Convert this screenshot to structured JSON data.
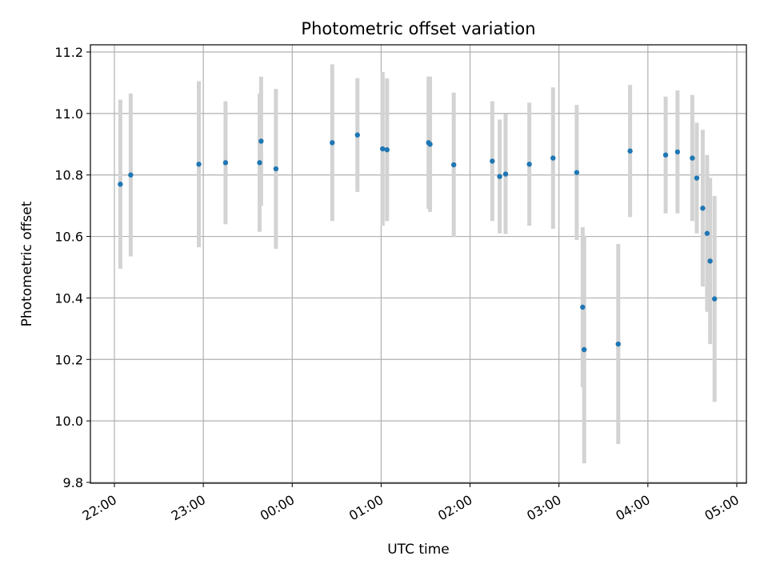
{
  "chart_data": {
    "type": "scatter",
    "title": "Photometric offset variation",
    "xlabel": "UTC time",
    "ylabel": "Photometric offset",
    "x_tick_labels": [
      "22:00",
      "23:00",
      "00:00",
      "01:00",
      "02:00",
      "03:00",
      "04:00",
      "05:00"
    ],
    "y_tick_labels": [
      "9.8",
      "10.0",
      "10.2",
      "10.4",
      "10.6",
      "10.8",
      "11.0",
      "11.2"
    ],
    "y_ticks": [
      9.8,
      10.0,
      10.2,
      10.4,
      10.6,
      10.8,
      11.0,
      11.2
    ],
    "ylim": [
      9.795,
      11.22
    ],
    "grid": true,
    "colors": {
      "point": "#1f77b4",
      "errorbar": "#d3d3d3",
      "grid": "#b0b0b0"
    },
    "points": [
      {
        "t": "22:04",
        "y": 10.77,
        "err": 0.275
      },
      {
        "t": "22:11",
        "y": 10.8,
        "err": 0.265
      },
      {
        "t": "22:57",
        "y": 10.835,
        "err": 0.27
      },
      {
        "t": "23:15",
        "y": 10.84,
        "err": 0.2
      },
      {
        "t": "23:38",
        "y": 10.84,
        "err": 0.225
      },
      {
        "t": "23:39",
        "y": 10.91,
        "err": 0.21
      },
      {
        "t": "23:49",
        "y": 10.82,
        "err": 0.26
      },
      {
        "t": "00:27",
        "y": 10.905,
        "err": 0.255
      },
      {
        "t": "00:44",
        "y": 10.93,
        "err": 0.185
      },
      {
        "t": "01:01",
        "y": 10.885,
        "err": 0.25
      },
      {
        "t": "01:04",
        "y": 10.882,
        "err": 0.232
      },
      {
        "t": "01:32",
        "y": 10.905,
        "err": 0.215
      },
      {
        "t": "01:33",
        "y": 10.9,
        "err": 0.22
      },
      {
        "t": "01:49",
        "y": 10.833,
        "err": 0.235
      },
      {
        "t": "02:15",
        "y": 10.845,
        "err": 0.195
      },
      {
        "t": "02:20",
        "y": 10.795,
        "err": 0.185
      },
      {
        "t": "02:24",
        "y": 10.803,
        "err": 0.195
      },
      {
        "t": "02:40",
        "y": 10.835,
        "err": 0.2
      },
      {
        "t": "02:56",
        "y": 10.855,
        "err": 0.23
      },
      {
        "t": "03:12",
        "y": 10.808,
        "err": 0.22
      },
      {
        "t": "03:16",
        "y": 10.37,
        "err": 0.26
      },
      {
        "t": "03:17",
        "y": 10.232,
        "err": 0.37
      },
      {
        "t": "03:40",
        "y": 10.25,
        "err": 0.325
      },
      {
        "t": "03:48",
        "y": 10.878,
        "err": 0.215
      },
      {
        "t": "04:12",
        "y": 10.865,
        "err": 0.19
      },
      {
        "t": "04:20",
        "y": 10.875,
        "err": 0.2
      },
      {
        "t": "04:30",
        "y": 10.855,
        "err": 0.205
      },
      {
        "t": "04:33",
        "y": 10.79,
        "err": 0.18
      },
      {
        "t": "04:37",
        "y": 10.692,
        "err": 0.255
      },
      {
        "t": "04:40",
        "y": 10.61,
        "err": 0.255
      },
      {
        "t": "04:42",
        "y": 10.52,
        "err": 0.27
      },
      {
        "t": "04:45",
        "y": 10.397,
        "err": 0.335
      }
    ]
  }
}
